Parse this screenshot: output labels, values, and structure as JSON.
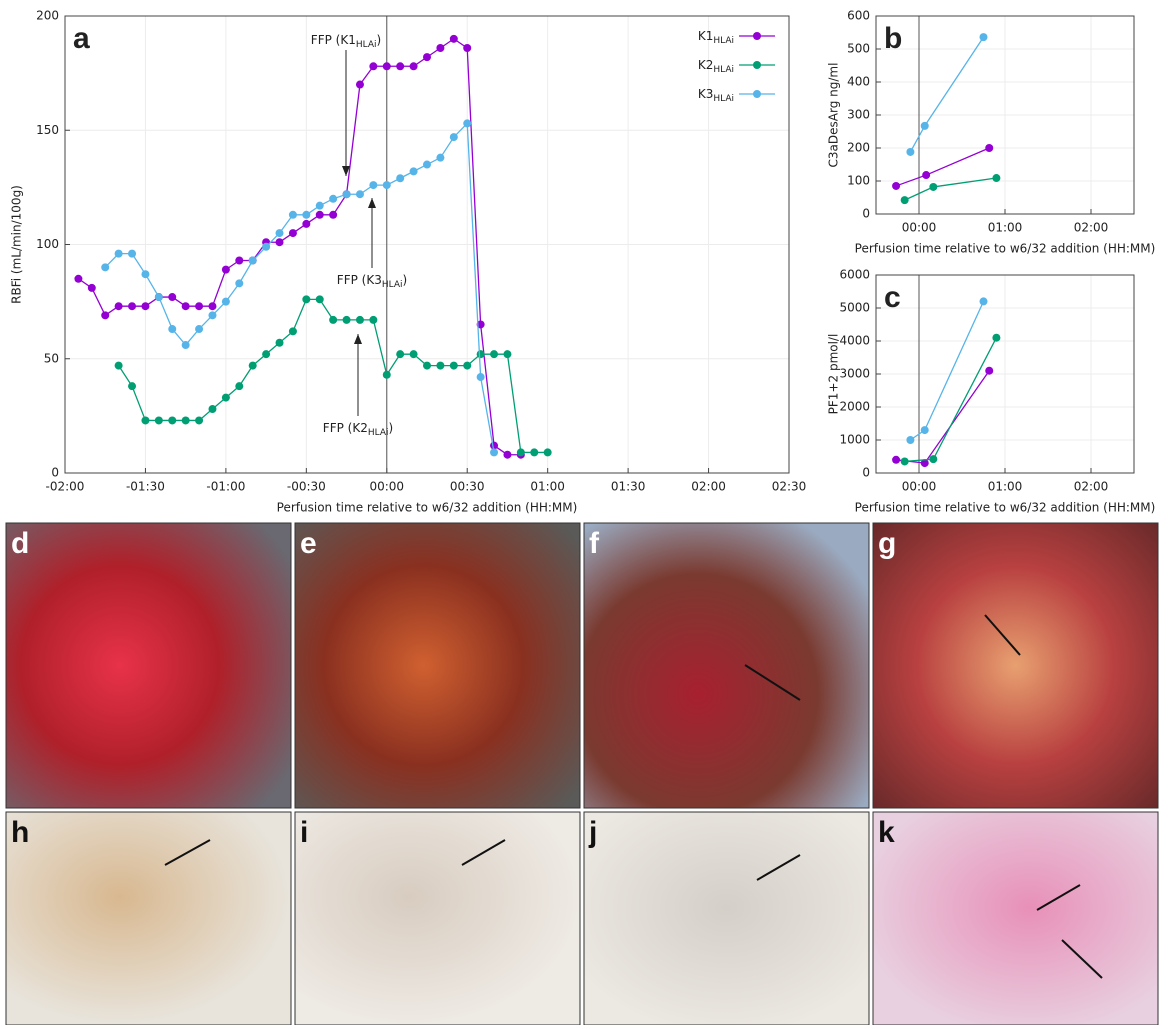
{
  "chart_data": [
    {
      "type": "line",
      "panel": "a",
      "y_label": "RBFi (mL/min/100g)",
      "x_label": "Perfusion time relative to w6/32 addition (HH:MM)",
      "xlim": [
        -120,
        150
      ],
      "ylim": [
        0,
        200
      ],
      "xticks": [
        {
          "value": -120,
          "label": "-02:00"
        },
        {
          "value": -90,
          "label": "-01:30"
        },
        {
          "value": -60,
          "label": "-01:00"
        },
        {
          "value": -30,
          "label": "-00:30"
        },
        {
          "value": 0,
          "label": "00:00"
        },
        {
          "value": 30,
          "label": "00:30"
        },
        {
          "value": 60,
          "label": "01:00"
        },
        {
          "value": 90,
          "label": "01:30"
        },
        {
          "value": 120,
          "label": "02:00"
        },
        {
          "value": 150,
          "label": "02:30"
        }
      ],
      "yticks": [
        0,
        50,
        100,
        150,
        200
      ],
      "grid": true,
      "vline": 0,
      "legend": "top-right",
      "series": [
        {
          "name": "K1",
          "name_sub": "HLAi",
          "color": "#9400d3",
          "x": [
            -115,
            -110,
            -105,
            -100,
            -95,
            -90,
            -85,
            -80,
            -75,
            -70,
            -65,
            -60,
            -55,
            -50,
            -45,
            -40,
            -35,
            -30,
            -25,
            -20,
            -15,
            -10,
            -5,
            0,
            5,
            10,
            15,
            20,
            25,
            30,
            35,
            40,
            45,
            50
          ],
          "values": [
            85,
            81,
            69,
            73,
            73,
            73,
            77,
            77,
            73,
            73,
            73,
            89,
            93,
            93,
            101,
            101,
            105,
            109,
            113,
            113,
            122,
            170,
            178,
            178,
            178,
            178,
            182,
            186,
            190,
            186,
            65,
            12,
            8,
            8
          ]
        },
        {
          "name": "K2",
          "name_sub": "HLAi",
          "color": "#009e73",
          "x": [
            -100,
            -95,
            -90,
            -85,
            -80,
            -75,
            -70,
            -65,
            -60,
            -55,
            -50,
            -45,
            -40,
            -35,
            -30,
            -25,
            -20,
            -15,
            -10,
            -5,
            0,
            5,
            10,
            15,
            20,
            25,
            30,
            35,
            40,
            45,
            50,
            55,
            60
          ],
          "values": [
            47,
            38,
            23,
            23,
            23,
            23,
            23,
            28,
            33,
            38,
            47,
            52,
            57,
            62,
            76,
            76,
            67,
            67,
            67,
            67,
            43,
            52,
            52,
            47,
            47,
            47,
            47,
            52,
            52,
            52,
            9,
            9,
            9
          ]
        },
        {
          "name": "K3",
          "name_sub": "HLAi",
          "color": "#56b4e9",
          "x": [
            -105,
            -100,
            -95,
            -90,
            -85,
            -80,
            -75,
            -70,
            -65,
            -60,
            -55,
            -50,
            -45,
            -40,
            -35,
            -30,
            -25,
            -20,
            -15,
            -10,
            -5,
            0,
            5,
            10,
            15,
            20,
            25,
            30,
            35,
            40
          ],
          "values": [
            90,
            96,
            96,
            87,
            77,
            63,
            56,
            63,
            69,
            75,
            83,
            93,
            99,
            105,
            113,
            113,
            117,
            120,
            122,
            122,
            126,
            126,
            129,
            132,
            135,
            138,
            147,
            153,
            42,
            9
          ]
        }
      ],
      "annotations": [
        {
          "text": "FFP (K1",
          "sub": "HLAi",
          "end": ")"
        },
        {
          "text": "FFP (K3",
          "sub": "HLAi",
          "end": ")"
        },
        {
          "text": "FFP (K2",
          "sub": "HLAi",
          "end": ")"
        }
      ]
    },
    {
      "type": "line",
      "panel": "b",
      "y_label": "C3aDesArg ng/ml",
      "x_label": "Perfusion time relative to w6/32 addition (HH:MM)",
      "xlim": [
        -30,
        150
      ],
      "ylim": [
        0,
        600
      ],
      "xticks": [
        {
          "value": 0,
          "label": "00:00"
        },
        {
          "value": 60,
          "label": "01:00"
        },
        {
          "value": 120,
          "label": "02:00"
        }
      ],
      "yticks": [
        0,
        100,
        200,
        300,
        400,
        500,
        600
      ],
      "grid": true,
      "vline": 0,
      "series": [
        {
          "name": "K1",
          "color": "#9400d3",
          "x": [
            -16,
            5,
            49
          ],
          "values": [
            85,
            118,
            200
          ]
        },
        {
          "name": "K2",
          "color": "#009e73",
          "x": [
            -10,
            10,
            54
          ],
          "values": [
            42,
            82,
            109
          ]
        },
        {
          "name": "K3",
          "color": "#56b4e9",
          "x": [
            -6,
            4,
            45
          ],
          "values": [
            188,
            267,
            536
          ]
        }
      ]
    },
    {
      "type": "line",
      "panel": "c",
      "y_label": "PF1+2 pmol/l",
      "x_label": "Perfusion time relative to w6/32 addition (HH:MM)",
      "xlim": [
        -30,
        150
      ],
      "ylim": [
        0,
        6000
      ],
      "xticks": [
        {
          "value": 0,
          "label": "00:00"
        },
        {
          "value": 60,
          "label": "01:00"
        },
        {
          "value": 120,
          "label": "02:00"
        }
      ],
      "yticks": [
        0,
        1000,
        2000,
        3000,
        4000,
        5000,
        6000
      ],
      "grid": true,
      "vline": 0,
      "series": [
        {
          "name": "K1",
          "color": "#9400d3",
          "x": [
            -16,
            4,
            49
          ],
          "values": [
            400,
            300,
            3100
          ]
        },
        {
          "name": "K2",
          "color": "#009e73",
          "x": [
            -10,
            10,
            54
          ],
          "values": [
            350,
            420,
            4100
          ]
        },
        {
          "name": "K3",
          "color": "#56b4e9",
          "x": [
            -6,
            4,
            45
          ],
          "values": [
            1000,
            1300,
            5200
          ]
        }
      ]
    }
  ],
  "photos": [
    "d",
    "e",
    "f",
    "g",
    "h",
    "i",
    "j",
    "k"
  ]
}
